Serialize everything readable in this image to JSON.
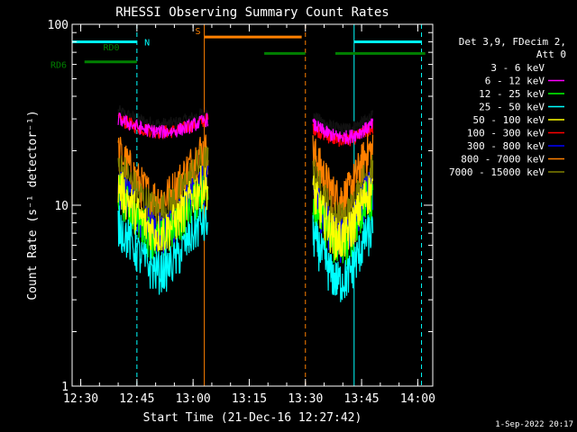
{
  "chart_data": {
    "type": "line",
    "title": "RHESSI Observing Summary Count Rates",
    "xlabel": "Start Time (21-Dec-16 12:27:42)",
    "ylabel": "Count Rate (s⁻¹ detector⁻¹)",
    "yscale": "log",
    "ylim": [
      1,
      100
    ],
    "xlim": [
      "12:27:42",
      "14:04:00"
    ],
    "x_ticks": [
      "12:30",
      "12:45",
      "13:00",
      "13:15",
      "13:30",
      "13:45",
      "14:00"
    ],
    "y_ticks": [
      "1",
      "10",
      "100"
    ],
    "grid": false,
    "legend_header": [
      "Det 3,9, FDecim 2,",
      "Att 0"
    ],
    "legend_position": "right",
    "footer_date": "1-Sep-2022 20:17",
    "series": [
      {
        "name": "3 - 6 keV",
        "color": "#000000",
        "level1": 33,
        "level2": 31
      },
      {
        "name": "6 - 12 keV",
        "color": "#ff00ff",
        "level1": 30,
        "level2": 28
      },
      {
        "name": "12 - 25 keV",
        "color": "#00ff00",
        "level1": 12,
        "level2": 11
      },
      {
        "name": "25 - 50 keV",
        "color": "#00ffff",
        "level1": 8,
        "level2": 7
      },
      {
        "name": "50 - 100 keV",
        "color": "#ffff00",
        "level1": 13,
        "level2": 12
      },
      {
        "name": "100 - 300 keV",
        "color": "#ff0000",
        "level1": 30,
        "level2": 27
      },
      {
        "name": "300 - 800 keV",
        "color": "#0000ff",
        "level1": 13,
        "level2": 12
      },
      {
        "name": "800 - 7000 keV",
        "color": "#ff8000",
        "level1": 20,
        "level2": 20
      },
      {
        "name": "7000 - 15000 keV",
        "color": "#808000",
        "level1": 17,
        "level2": 15
      }
    ],
    "flag_bars": [
      {
        "label": "N",
        "color": "#00ffff",
        "segments": [
          [
            "12:27:42",
            "12:45"
          ],
          [
            "13:43",
            "14:01"
          ]
        ],
        "y": 80
      },
      {
        "label": "S",
        "color": "#ff8000",
        "segments": [
          [
            "13:03",
            "13:29"
          ]
        ],
        "y": 85
      },
      {
        "label": "RD0",
        "color": "#008000",
        "segments": [
          [
            "13:19",
            "13:30"
          ],
          [
            "13:38",
            "14:02"
          ]
        ],
        "y": 69
      },
      {
        "label": "RD6",
        "color": "#008000",
        "segments": [
          [
            "12:31",
            "12:45"
          ]
        ],
        "y": 62
      }
    ],
    "vertical_lines": [
      {
        "time": "12:45",
        "color": "#00ffff",
        "dashed": true
      },
      {
        "time": "13:03",
        "color": "#ff8000",
        "dashed": false
      },
      {
        "time": "13:30",
        "color": "#ff8000",
        "dashed": true
      },
      {
        "time": "13:43",
        "color": "#00ffff",
        "dashed": false
      },
      {
        "time": "14:01",
        "color": "#00ffff",
        "dashed": true
      }
    ],
    "data_intervals": [
      [
        "12:40",
        "13:04"
      ],
      [
        "13:32",
        "13:48"
      ]
    ]
  }
}
